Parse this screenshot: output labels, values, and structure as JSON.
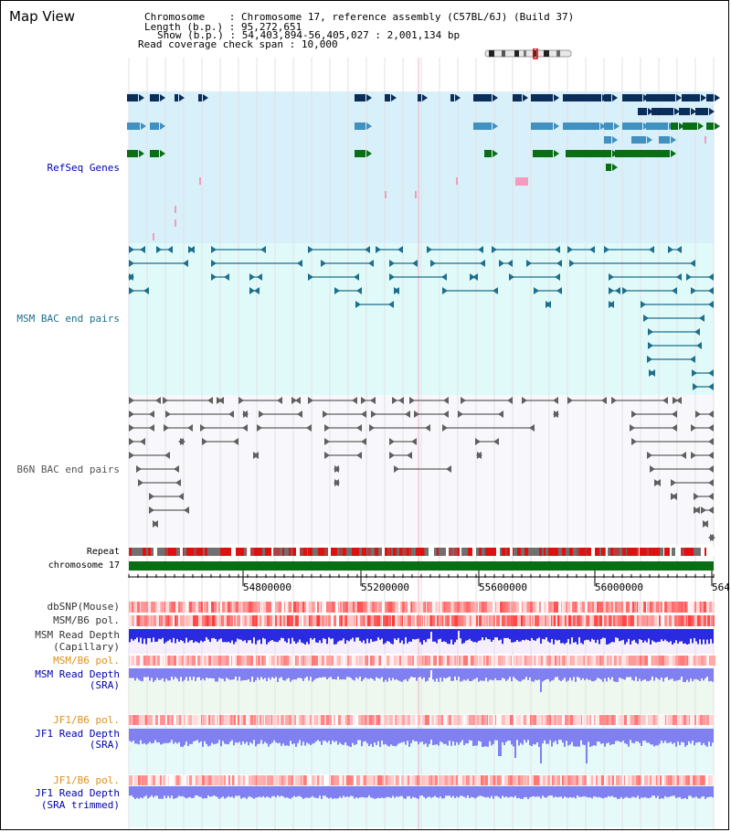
{
  "header": {
    "title": "Map View",
    "chromosome_key": "Chromosome",
    "chromosome_val": "Chromosome 17, reference assembly (C57BL/6J) (Build 37)",
    "length_key": "Length (b.p.)",
    "length_val": "95,272,651",
    "show_key": "Show (b.p.)",
    "show_val": "54,403,894-56,405,027 : 2,001,134 bp",
    "coverage_key": "Read coverage check span",
    "coverage_val": "10,000"
  },
  "tracks": {
    "refseq": "RefSeq Genes",
    "msm_bac": "MSM BAC end pairs",
    "b6n_bac": "B6N BAC end pairs",
    "repeat": "Repeat",
    "chromosome": "chromosome 17",
    "dbsnp": "dbSNP(Mouse)",
    "msm_b6_pol": "MSM/B6 pol.",
    "msm_read_depth_cap_1": "MSM Read Depth",
    "msm_read_depth_cap_2": "(Capillary)",
    "msm_b6_pol_2": "MSM/B6 pol.",
    "msm_read_depth_sra_1": "MSM Read Depth",
    "msm_read_depth_sra_2": "(SRA)",
    "jf1_b6_pol": "JF1/B6 pol.",
    "jf1_read_depth_sra_1": "JF1 Read Depth",
    "jf1_read_depth_sra_2": "(SRA)",
    "jf1_b6_pol_2": "JF1/B6 pol.",
    "jf1_read_depth_trim_1": "JF1 Read Depth",
    "jf1_read_depth_trim_2": "(SRA trimmed)"
  },
  "axis": {
    "ticks": [
      "54800000",
      "55200000",
      "55600000",
      "56000000",
      "564"
    ]
  },
  "colors": {
    "refseq_bg": "#d8f0fa",
    "msm_bg": "#e0fafa",
    "b6n_bg": "#f8f8fc",
    "refseq_dark": "#0a2d5a",
    "refseq_mid": "#4090c0",
    "refseq_green": "#0a6e14",
    "msm_line": "#1e6e8c",
    "b6n_line": "#606060",
    "chromosome_bar": "#0a6e14",
    "depth_blue": "#2a2ae0",
    "depth_light": "#8080f0"
  }
}
